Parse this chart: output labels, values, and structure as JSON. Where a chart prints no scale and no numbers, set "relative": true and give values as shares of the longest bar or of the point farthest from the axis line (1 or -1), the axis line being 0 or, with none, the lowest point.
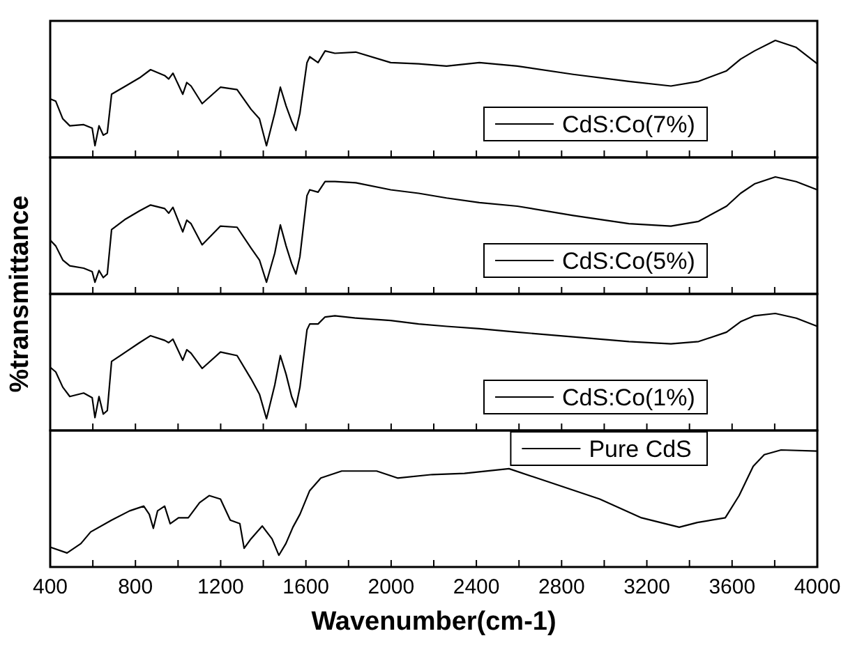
{
  "chart_data": [
    {
      "type": "line",
      "relative": true,
      "xlim": [
        400,
        4000
      ],
      "tick_labels": false,
      "legend": "bottom right",
      "ylabel": "%transmittance",
      "xticks": [
        400,
        {
          "value": 600,
          "label": null
        },
        800,
        {
          "value": 1000,
          "label": null
        },
        1200,
        {
          "value": 1400,
          "label": null
        },
        1600,
        {
          "value": 1800,
          "label": null
        },
        2000,
        {
          "value": 2200,
          "label": null
        },
        2400,
        {
          "value": 2600,
          "label": null
        },
        2800,
        {
          "value": 3000,
          "label": null
        },
        3200,
        {
          "value": 3400,
          "label": null
        },
        3600,
        {
          "value": 3800,
          "label": null
        },
        4000
      ],
      "series": [
        {
          "name": "CdS:Co(7%)",
          "color": "#000000",
          "x": [
            400,
            426,
            459,
            492,
            557,
            597,
            610,
            629,
            649,
            668,
            688,
            754,
            819,
            871,
            937,
            956,
            976,
            1022,
            1041,
            1061,
            1113,
            1199,
            1277,
            1343,
            1382,
            1415,
            1454,
            1480,
            1507,
            1533,
            1553,
            1572,
            1605,
            1618,
            1657,
            1690,
            1736,
            1834,
            1998,
            2129,
            2260,
            2414,
            2592,
            2854,
            3116,
            3313,
            3443,
            3574,
            3640,
            3705,
            3803,
            3901,
            4000
          ],
          "values": [
            0.5,
            0.48,
            0.33,
            0.27,
            0.28,
            0.25,
            0.1,
            0.27,
            0.19,
            0.21,
            0.54,
            0.61,
            0.68,
            0.75,
            0.7,
            0.67,
            0.72,
            0.54,
            0.64,
            0.61,
            0.46,
            0.6,
            0.58,
            0.41,
            0.33,
            0.1,
            0.38,
            0.6,
            0.44,
            0.31,
            0.23,
            0.38,
            0.81,
            0.86,
            0.81,
            0.91,
            0.89,
            0.9,
            0.81,
            0.8,
            0.78,
            0.81,
            0.78,
            0.71,
            0.65,
            0.61,
            0.65,
            0.74,
            0.84,
            0.91,
            1,
            0.94,
            0.8
          ]
        }
      ]
    },
    {
      "type": "line",
      "relative": true,
      "xlim": [
        400,
        4000
      ],
      "tick_labels": false,
      "legend": "bottom right",
      "xticks": [
        400,
        {
          "value": 600,
          "label": null
        },
        800,
        {
          "value": 1000,
          "label": null
        },
        1200,
        {
          "value": 1400,
          "label": null
        },
        1600,
        {
          "value": 1800,
          "label": null
        },
        2000,
        {
          "value": 2200,
          "label": null
        },
        2400,
        {
          "value": 2600,
          "label": null
        },
        2800,
        {
          "value": 3000,
          "label": null
        },
        3200,
        {
          "value": 3400,
          "label": null
        },
        3600,
        {
          "value": 3800,
          "label": null
        },
        4000
      ],
      "series": [
        {
          "name": "CdS:Co(5%)",
          "color": "#000000",
          "x": [
            400,
            426,
            459,
            492,
            557,
            597,
            610,
            629,
            649,
            668,
            688,
            754,
            819,
            871,
            937,
            956,
            976,
            1022,
            1041,
            1061,
            1113,
            1199,
            1277,
            1343,
            1382,
            1415,
            1454,
            1480,
            1507,
            1533,
            1553,
            1572,
            1605,
            1618,
            1657,
            1690,
            1736,
            1834,
            1998,
            2129,
            2260,
            2414,
            2592,
            2854,
            3116,
            3313,
            3443,
            3574,
            3640,
            3705,
            3803,
            3901,
            4000
          ],
          "values": [
            0.46,
            0.41,
            0.29,
            0.24,
            0.22,
            0.19,
            0.1,
            0.2,
            0.14,
            0.17,
            0.55,
            0.64,
            0.71,
            0.76,
            0.73,
            0.69,
            0.74,
            0.53,
            0.63,
            0.6,
            0.42,
            0.58,
            0.57,
            0.39,
            0.29,
            0.1,
            0.35,
            0.59,
            0.41,
            0.26,
            0.17,
            0.32,
            0.84,
            0.89,
            0.87,
            0.96,
            0.96,
            0.95,
            0.89,
            0.86,
            0.82,
            0.78,
            0.75,
            0.67,
            0.6,
            0.58,
            0.62,
            0.75,
            0.86,
            0.94,
            1,
            0.96,
            0.89
          ]
        }
      ]
    },
    {
      "type": "line",
      "relative": true,
      "xlim": [
        400,
        4000
      ],
      "tick_labels": false,
      "legend": "bottom right",
      "xticks": [
        400,
        {
          "value": 600,
          "label": null
        },
        800,
        {
          "value": 1000,
          "label": null
        },
        1200,
        {
          "value": 1400,
          "label": null
        },
        1600,
        {
          "value": 1800,
          "label": null
        },
        2000,
        {
          "value": 2200,
          "label": null
        },
        2400,
        {
          "value": 2600,
          "label": null
        },
        2800,
        {
          "value": 3000,
          "label": null
        },
        3200,
        {
          "value": 3400,
          "label": null
        },
        3600,
        {
          "value": 3800,
          "label": null
        },
        4000
      ],
      "series": [
        {
          "name": "CdS:Co(1%)",
          "color": "#000000",
          "x": [
            400,
            426,
            459,
            492,
            557,
            597,
            610,
            629,
            649,
            668,
            688,
            754,
            819,
            871,
            937,
            956,
            976,
            1022,
            1041,
            1061,
            1113,
            1199,
            1277,
            1343,
            1382,
            1415,
            1454,
            1480,
            1507,
            1533,
            1553,
            1572,
            1605,
            1618,
            1657,
            1690,
            1736,
            1834,
            1998,
            2129,
            2260,
            2414,
            2592,
            2854,
            3116,
            3313,
            3443,
            3574,
            3640,
            3705,
            3803,
            3901,
            4000
          ],
          "values": [
            0.54,
            0.5,
            0.37,
            0.29,
            0.32,
            0.28,
            0.11,
            0.29,
            0.14,
            0.17,
            0.59,
            0.67,
            0.75,
            0.81,
            0.77,
            0.75,
            0.78,
            0.6,
            0.69,
            0.66,
            0.53,
            0.67,
            0.64,
            0.44,
            0.31,
            0.1,
            0.39,
            0.64,
            0.48,
            0.29,
            0.2,
            0.37,
            0.86,
            0.91,
            0.91,
            0.97,
            0.98,
            0.96,
            0.94,
            0.91,
            0.89,
            0.87,
            0.84,
            0.8,
            0.76,
            0.74,
            0.76,
            0.84,
            0.93,
            0.98,
            1,
            0.96,
            0.89
          ]
        }
      ]
    },
    {
      "type": "line",
      "relative": true,
      "xlim": [
        400,
        4000
      ],
      "tick_labels": "x",
      "legend": "top right",
      "xlabel": "Wavenumber(cm-1)",
      "xticks": [
        400,
        {
          "value": 600,
          "label": null
        },
        800,
        {
          "value": 1000,
          "label": null
        },
        1200,
        {
          "value": 1400,
          "label": null
        },
        1600,
        {
          "value": 1800,
          "label": null
        },
        2000,
        {
          "value": 2200,
          "label": null
        },
        2400,
        {
          "value": 2600,
          "label": null
        },
        2800,
        {
          "value": 3000,
          "label": null
        },
        3200,
        {
          "value": 3400,
          "label": null
        },
        3600,
        {
          "value": 3800,
          "label": null
        },
        4000
      ],
      "series": [
        {
          "name": "Pure CdS",
          "color": "#000000",
          "x": [
            400,
            479,
            544,
            590,
            688,
            773,
            839,
            865,
            884,
            904,
            937,
            963,
            1002,
            1048,
            1101,
            1146,
            1199,
            1245,
            1290,
            1310,
            1342,
            1395,
            1441,
            1473,
            1506,
            1539,
            1572,
            1617,
            1670,
            1768,
            1932,
            2030,
            2193,
            2344,
            2553,
            2750,
            2979,
            3175,
            3352,
            3437,
            3568,
            3633,
            3699,
            3751,
            3830,
            4000
          ],
          "values": [
            0.17,
            0.12,
            0.2,
            0.3,
            0.4,
            0.48,
            0.52,
            0.45,
            0.33,
            0.48,
            0.52,
            0.37,
            0.42,
            0.42,
            0.55,
            0.61,
            0.58,
            0.4,
            0.37,
            0.16,
            0.24,
            0.35,
            0.24,
            0.1,
            0.2,
            0.34,
            0.45,
            0.65,
            0.76,
            0.82,
            0.82,
            0.76,
            0.79,
            0.8,
            0.84,
            0.72,
            0.58,
            0.42,
            0.34,
            0.38,
            0.42,
            0.61,
            0.86,
            0.96,
            1,
            0.99
          ]
        }
      ]
    }
  ]
}
